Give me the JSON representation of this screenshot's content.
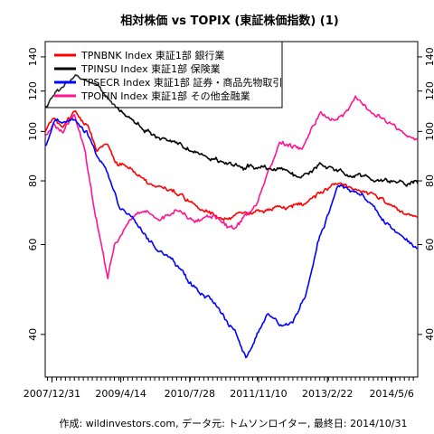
{
  "chart_data": {
    "type": "line",
    "title": "相対株価 vs TOPIX (東証株価指数) (1)",
    "caption": "作成: wildinvestors.com, データ元: トムソンロイター, 最終日: 2014/10/31",
    "y_scale": "log",
    "ylim": [
      33,
      150
    ],
    "yticks": [
      40,
      60,
      80,
      100,
      120,
      140
    ],
    "x_range": [
      "2007-11-15",
      "2014-10-31"
    ],
    "x_tick_labels": [
      "2007/12/31",
      "2009/4/14",
      "2010/7/28",
      "2011/11/10",
      "2013/2/22",
      "2014/5/6"
    ],
    "x_tick_dates": [
      "2007-12-31",
      "2009-04-14",
      "2010-07-28",
      "2011-11-10",
      "2013-02-22",
      "2014-05-06"
    ],
    "grid": false,
    "legend_position": "top-left",
    "series": [
      {
        "name": "TPNBNK Index 東証1部 銀行業",
        "color": "#ff0000",
        "points": [
          [
            "2007-11-15",
            100
          ],
          [
            "2008-01-15",
            108
          ],
          [
            "2008-03-15",
            102
          ],
          [
            "2008-06-01",
            110
          ],
          [
            "2008-09-01",
            104
          ],
          [
            "2008-11-01",
            92
          ],
          [
            "2009-01-15",
            95
          ],
          [
            "2009-03-01",
            88
          ],
          [
            "2009-06-01",
            85
          ],
          [
            "2009-09-01",
            81
          ],
          [
            "2010-01-01",
            78
          ],
          [
            "2010-05-01",
            76
          ],
          [
            "2010-09-01",
            72
          ],
          [
            "2011-01-01",
            69
          ],
          [
            "2011-06-01",
            68
          ],
          [
            "2011-11-01",
            69
          ],
          [
            "2012-04-01",
            71
          ],
          [
            "2012-09-01",
            72
          ],
          [
            "2013-01-01",
            76
          ],
          [
            "2013-05-01",
            79
          ],
          [
            "2013-09-01",
            77
          ],
          [
            "2014-01-01",
            75
          ],
          [
            "2014-05-01",
            71
          ],
          [
            "2014-08-01",
            69
          ],
          [
            "2014-10-31",
            68
          ]
        ]
      },
      {
        "name": "TPINSU Index 東証1部 保険業",
        "color": "#000000",
        "points": [
          [
            "2007-11-15",
            112
          ],
          [
            "2008-01-15",
            118
          ],
          [
            "2008-03-15",
            122
          ],
          [
            "2008-06-01",
            128
          ],
          [
            "2008-09-01",
            124
          ],
          [
            "2008-11-01",
            122
          ],
          [
            "2009-01-15",
            116
          ],
          [
            "2009-04-01",
            112
          ],
          [
            "2009-07-01",
            106
          ],
          [
            "2009-10-01",
            101
          ],
          [
            "2010-01-01",
            98
          ],
          [
            "2010-05-01",
            95
          ],
          [
            "2010-09-01",
            91
          ],
          [
            "2011-01-01",
            88
          ],
          [
            "2011-06-01",
            86
          ],
          [
            "2011-11-01",
            85
          ],
          [
            "2012-04-01",
            84
          ],
          [
            "2012-09-01",
            82
          ],
          [
            "2013-01-01",
            86
          ],
          [
            "2013-05-01",
            84
          ],
          [
            "2013-09-01",
            82
          ],
          [
            "2014-01-01",
            81
          ],
          [
            "2014-05-01",
            80
          ],
          [
            "2014-08-01",
            79
          ],
          [
            "2014-10-31",
            79
          ]
        ]
      },
      {
        "name": "TPSECR Index 東証1部 証券・商品先物取引",
        "color": "#0000ff",
        "points": [
          [
            "2007-11-15",
            94
          ],
          [
            "2008-01-15",
            103
          ],
          [
            "2008-03-15",
            104
          ],
          [
            "2008-06-01",
            106
          ],
          [
            "2008-09-01",
            99
          ],
          [
            "2008-11-01",
            90
          ],
          [
            "2009-01-15",
            84
          ],
          [
            "2009-04-01",
            72
          ],
          [
            "2009-07-01",
            68
          ],
          [
            "2009-10-01",
            62
          ],
          [
            "2010-01-01",
            58
          ],
          [
            "2010-05-01",
            55
          ],
          [
            "2010-09-01",
            49
          ],
          [
            "2011-01-01",
            46
          ],
          [
            "2011-06-01",
            41
          ],
          [
            "2011-08-15",
            36
          ],
          [
            "2011-11-01",
            40
          ],
          [
            "2012-01-15",
            44
          ],
          [
            "2012-04-01",
            42
          ],
          [
            "2012-07-01",
            42
          ],
          [
            "2012-10-01",
            48
          ],
          [
            "2013-01-01",
            62
          ],
          [
            "2013-05-01",
            78
          ],
          [
            "2013-09-01",
            76
          ],
          [
            "2014-01-01",
            72
          ],
          [
            "2014-05-01",
            65
          ],
          [
            "2014-08-01",
            62
          ],
          [
            "2014-10-31",
            59
          ]
        ]
      },
      {
        "name": "TPOFIN Index 東証1部 その他金融業",
        "color": "#ff1493",
        "points": [
          [
            "2007-11-15",
            98
          ],
          [
            "2008-01-15",
            104
          ],
          [
            "2008-03-15",
            100
          ],
          [
            "2008-06-01",
            108
          ],
          [
            "2008-08-15",
            90
          ],
          [
            "2008-10-15",
            70
          ],
          [
            "2008-12-15",
            58
          ],
          [
            "2009-01-15",
            52
          ],
          [
            "2009-03-01",
            60
          ],
          [
            "2009-06-01",
            66
          ],
          [
            "2009-10-01",
            70
          ],
          [
            "2010-01-01",
            68
          ],
          [
            "2010-05-01",
            70
          ],
          [
            "2010-09-01",
            66
          ],
          [
            "2011-01-01",
            68
          ],
          [
            "2011-06-01",
            64
          ],
          [
            "2011-11-01",
            72
          ],
          [
            "2012-04-01",
            95
          ],
          [
            "2012-09-01",
            92
          ],
          [
            "2013-01-01",
            108
          ],
          [
            "2013-05-01",
            104
          ],
          [
            "2013-09-01",
            116
          ],
          [
            "2014-01-01",
            108
          ],
          [
            "2014-05-01",
            104
          ],
          [
            "2014-08-01",
            100
          ],
          [
            "2014-10-31",
            96
          ]
        ]
      }
    ]
  }
}
